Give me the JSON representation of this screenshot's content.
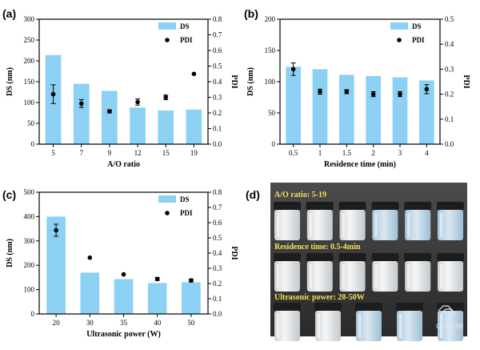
{
  "chart_data": [
    {
      "panel_label": "(a)",
      "type": "bar",
      "categories": [
        "5",
        "7",
        "9",
        "12",
        "15",
        "19"
      ],
      "series": [
        {
          "name": "DS",
          "axis": "left",
          "values": [
            214,
            145,
            128,
            88,
            81,
            83
          ]
        },
        {
          "name": "PDI",
          "axis": "right",
          "type": "scatter",
          "values": [
            0.32,
            0.26,
            0.21,
            0.27,
            0.3,
            0.45
          ],
          "errors": [
            0.06,
            0.025,
            0.01,
            0.02,
            0.015,
            0
          ]
        }
      ],
      "xlabel": "A/O ratio",
      "ylabel": "DS (nm)",
      "y2label": "PDI",
      "ylim": [
        0,
        300
      ],
      "yticks": [
        0,
        50,
        100,
        150,
        200,
        250,
        300
      ],
      "y2lim": [
        0,
        0.8
      ],
      "y2ticks": [
        "0.0",
        "0.1",
        "0.2",
        "0.3",
        "0.4",
        "0.5",
        "0.6",
        "0.7",
        "0.8"
      ],
      "legend": "top-right"
    },
    {
      "panel_label": "(b)",
      "type": "bar",
      "categories": [
        "0.5",
        "1",
        "1.5",
        "2",
        "3",
        "4"
      ],
      "series": [
        {
          "name": "DS",
          "axis": "left",
          "values": [
            124,
            120,
            111,
            109,
            107,
            102
          ]
        },
        {
          "name": "PDI",
          "axis": "right",
          "type": "scatter",
          "values": [
            0.3,
            0.21,
            0.21,
            0.2,
            0.2,
            0.22
          ],
          "errors": [
            0.025,
            0.01,
            0.008,
            0.01,
            0.01,
            0.018
          ]
        }
      ],
      "xlabel": "Residence time (min)",
      "ylabel": "DS (nm)",
      "y2label": "PDI",
      "ylim": [
        0,
        200
      ],
      "yticks": [
        0,
        50,
        100,
        150,
        200
      ],
      "y2lim": [
        0,
        0.5
      ],
      "y2ticks": [
        "0.0",
        "0.1",
        "0.2",
        "0.3",
        "0.4",
        "0.5"
      ],
      "legend": "top-right"
    },
    {
      "panel_label": "(c)",
      "type": "bar",
      "categories": [
        "20",
        "30",
        "35",
        "40",
        "50"
      ],
      "series": [
        {
          "name": "DS",
          "axis": "left",
          "values": [
            400,
            170,
            143,
            127,
            130
          ]
        },
        {
          "name": "PDI",
          "axis": "right",
          "type": "scatter",
          "values": [
            0.55,
            0.37,
            0.26,
            0.23,
            0.22
          ],
          "errors": [
            0.04,
            0,
            0,
            0.01,
            0.01
          ]
        }
      ],
      "xlabel": "Ultrasonic power (W)",
      "ylabel": "DS (nm)",
      "y2label": "PDI",
      "ylim": [
        0,
        500
      ],
      "yticks": [
        0,
        100,
        200,
        300,
        400,
        500
      ],
      "y2lim": [
        0,
        0.8
      ],
      "y2ticks": [
        "0.0",
        "0.1",
        "0.2",
        "0.3",
        "0.4",
        "0.5",
        "0.6",
        "0.7",
        "0.8"
      ],
      "legend": "top-right"
    }
  ],
  "photo": {
    "panel_label": "(d)",
    "captions": [
      "A/O ratio: 5-19",
      "Residence time: 0.5-4min",
      "Ultrasonic power: 20-50W"
    ],
    "logo": "CCE LAB"
  },
  "colors": {
    "bar": "#8cd1f3",
    "point": "#000000",
    "caption": "#f3e25a"
  }
}
